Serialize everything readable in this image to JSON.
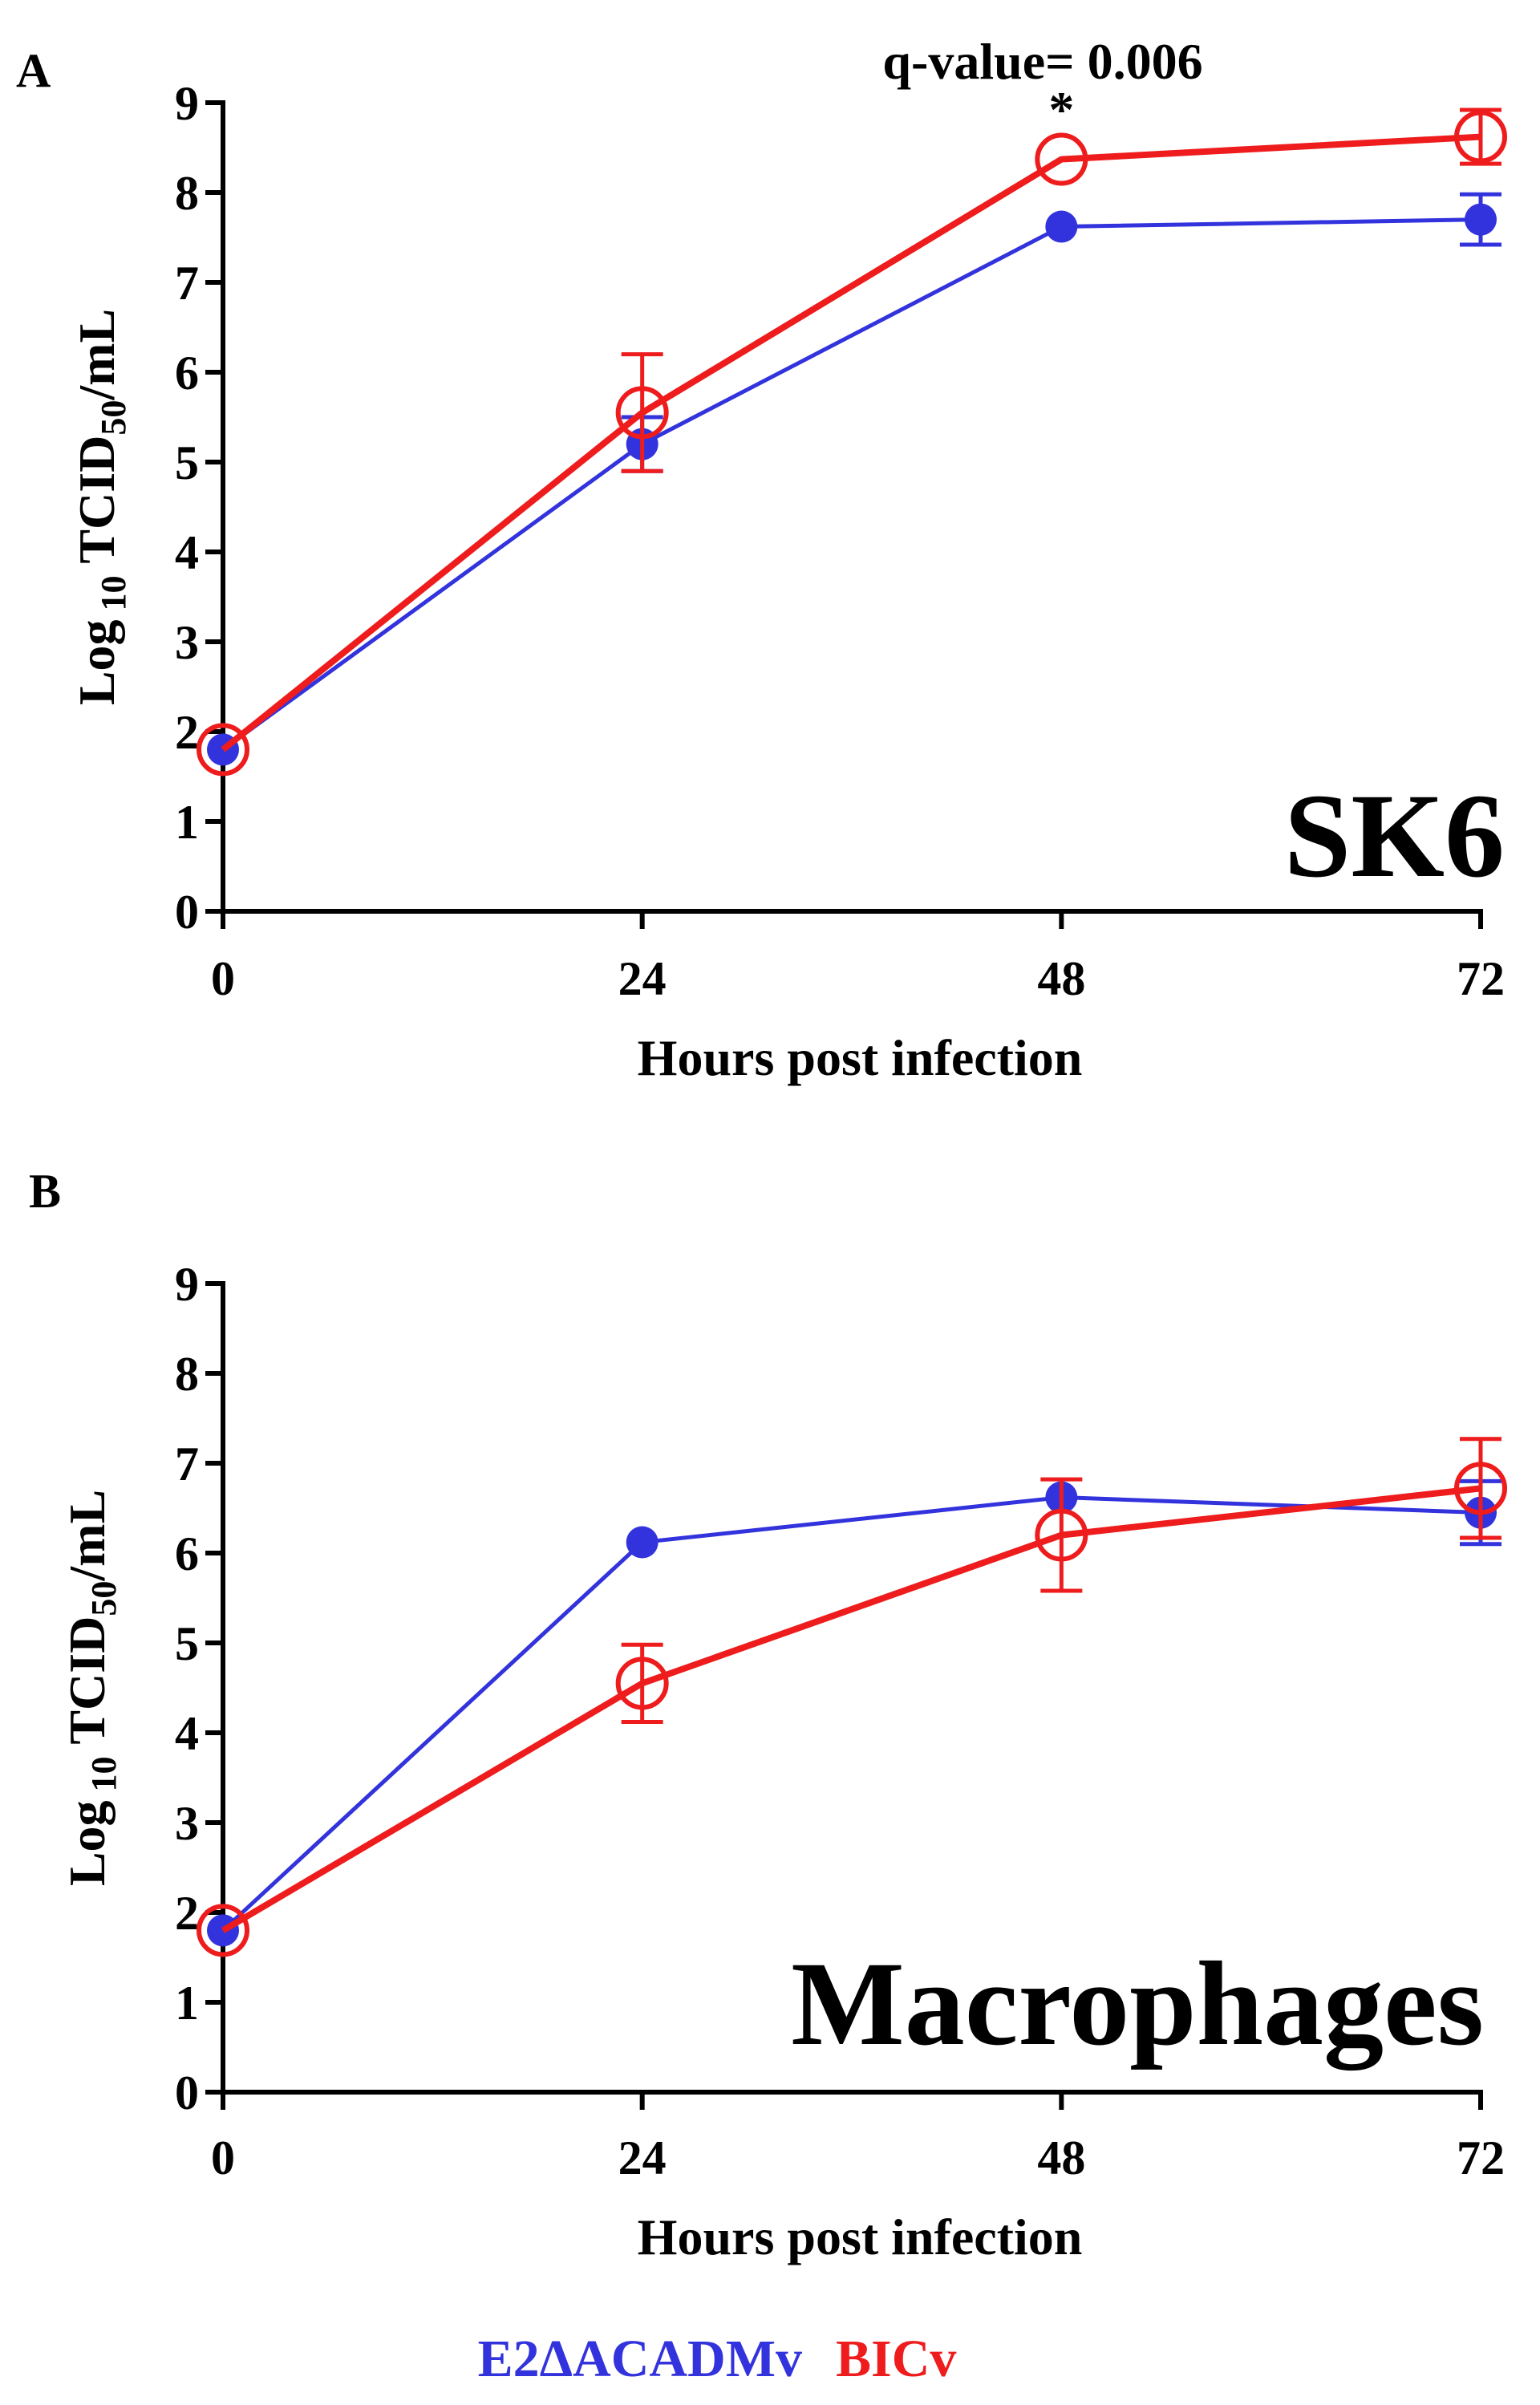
{
  "legend": {
    "items": [
      {
        "label": "E2ΔACADMv",
        "color": "#3333dd"
      },
      {
        "label": "BICv",
        "color": "#ee1c1c"
      }
    ]
  },
  "chart_data": [
    {
      "type": "line",
      "panel_letter": "A",
      "panel_name": "SK6",
      "annotation": "q-value= 0.006",
      "significance_marker": "*",
      "significance_x": 48,
      "xlabel": "Hours post infection",
      "ylabel_main": "Log",
      "ylabel_sub": "10",
      "ylabel_rest": " TCID",
      "ylabel_sub2": "50",
      "ylabel_end": "/mL",
      "x": [
        0,
        24,
        48,
        72
      ],
      "x_tick_labels": [
        "0",
        "24",
        "48",
        "72"
      ],
      "ylim": [
        0,
        9
      ],
      "y_ticks": [
        0,
        1,
        2,
        3,
        4,
        5,
        6,
        7,
        8,
        9
      ],
      "series": [
        {
          "name": "E2ΔACADMv",
          "color": "#3333dd",
          "marker": "filled-circle",
          "values": [
            1.8,
            5.2,
            7.62,
            7.7
          ],
          "errors": [
            0.05,
            0.3,
            0.05,
            0.28
          ]
        },
        {
          "name": "BICv",
          "color": "#ee1c1c",
          "marker": "open-circle",
          "values": [
            1.8,
            5.55,
            8.37,
            8.62
          ],
          "errors": [
            0.05,
            0.65,
            0.05,
            0.3
          ]
        }
      ]
    },
    {
      "type": "line",
      "panel_letter": "B",
      "panel_name": "Macrophages",
      "annotation": "",
      "significance_marker": "",
      "significance_x": null,
      "xlabel": "Hours post infection",
      "ylabel_main": "Log",
      "ylabel_sub": "10",
      "ylabel_rest": " TCID",
      "ylabel_sub2": "50",
      "ylabel_end": "/mL",
      "x": [
        0,
        24,
        48,
        72
      ],
      "x_tick_labels": [
        "0",
        "24",
        "48",
        "72"
      ],
      "ylim": [
        0,
        9
      ],
      "y_ticks": [
        0,
        1,
        2,
        3,
        4,
        5,
        6,
        7,
        8,
        9
      ],
      "series": [
        {
          "name": "E2ΔACADMv",
          "color": "#3333dd",
          "marker": "filled-circle",
          "values": [
            1.8,
            6.12,
            6.62,
            6.45
          ],
          "errors": [
            0.05,
            0.05,
            0.05,
            0.35
          ]
        },
        {
          "name": "BICv",
          "color": "#ee1c1c",
          "marker": "open-circle",
          "values": [
            1.8,
            4.55,
            6.2,
            6.72
          ],
          "errors": [
            0.05,
            0.43,
            0.62,
            0.55
          ]
        }
      ]
    }
  ]
}
